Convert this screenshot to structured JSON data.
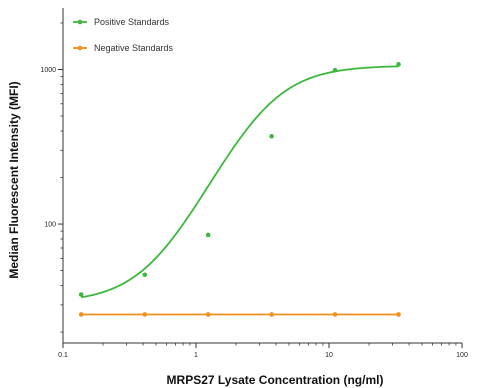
{
  "chart_data": {
    "type": "scatter",
    "title": "",
    "xlabel": "MRPS27 Lysate Concentration (ng/ml)",
    "ylabel": "Median Fluorescent Intensity (MFI)",
    "xscale": "log",
    "yscale": "log",
    "xlim": [
      0.1,
      100
    ],
    "ylim": [
      17,
      2500
    ],
    "x_ticks": [
      0.1,
      1,
      10,
      100
    ],
    "x_tick_labels": [
      "0.1",
      "1",
      "10",
      "100"
    ],
    "y_ticks": [
      100,
      1000
    ],
    "y_tick_labels": [
      "100",
      "1000"
    ],
    "grid": false,
    "legend_position": "top-left",
    "series": [
      {
        "name": "Positive Standards",
        "color": "#3cb83c",
        "x": [
          0.137,
          0.412,
          1.235,
          3.704,
          11.11,
          33.33
        ],
        "y": [
          35,
          47,
          85,
          370,
          990,
          1080
        ]
      },
      {
        "name": "Negative Standards",
        "color": "#f0901e",
        "x": [
          0.137,
          0.412,
          1.235,
          3.704,
          11.11,
          33.33
        ],
        "y": [
          26,
          26,
          26,
          26,
          26,
          26
        ]
      }
    ],
    "fit_curve": {
      "model": "4PL",
      "bottom": 31,
      "top": 1060,
      "ec50": 3.2,
      "hill": 1.9
    }
  }
}
